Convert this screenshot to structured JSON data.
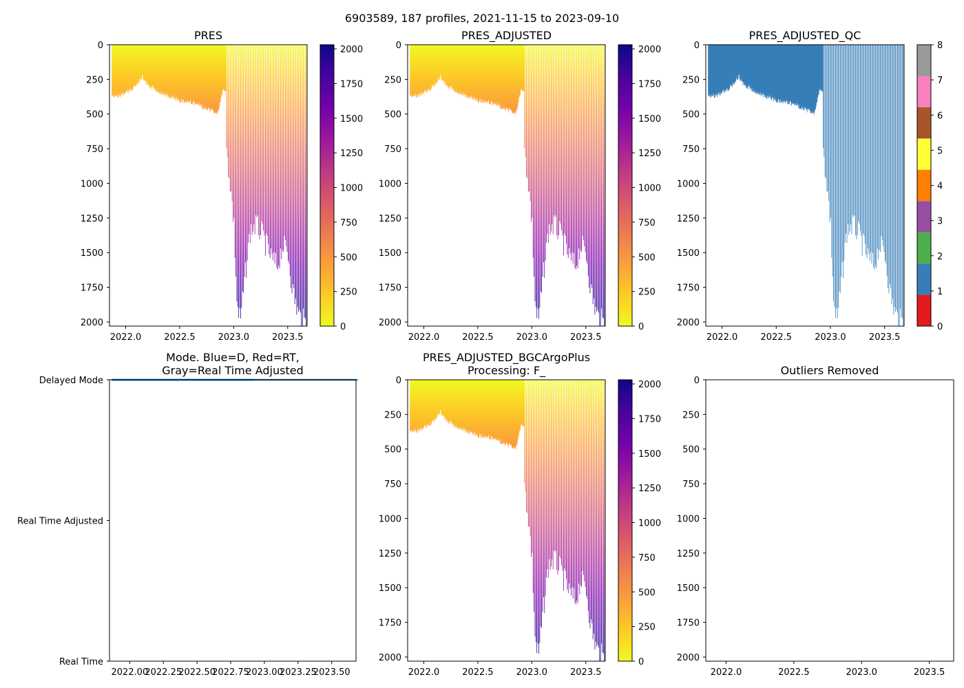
{
  "suptitle": "6903589, 187 profiles, 2021-11-15 to 2023-09-10",
  "colors": {
    "mode_delayed": "#1f77b4",
    "plasma": [
      "#f0f921",
      "#fdca26",
      "#fb9f3a",
      "#ed7953",
      "#d8576b",
      "#bd3786",
      "#9c179e",
      "#7201a8",
      "#46039f",
      "#0d0887"
    ],
    "qc_blue": "#377eb8"
  },
  "chart_data": [
    {
      "id": "pres",
      "type": "heatmap",
      "title": "PRES",
      "xlim": [
        2021.85,
        2023.68
      ],
      "ylim": [
        2030,
        0
      ],
      "xticks": [
        "2022.0",
        "2022.5",
        "2023.0",
        "2023.5"
      ],
      "xtick_values": [
        2022.0,
        2022.5,
        2023.0,
        2023.5
      ],
      "yticks": [
        "0",
        "250",
        "500",
        "750",
        "1000",
        "1250",
        "1500",
        "1750",
        "2000"
      ],
      "ytick_values": [
        0,
        250,
        500,
        750,
        1000,
        1250,
        1500,
        1750,
        2000
      ],
      "colormap": "plasma_r",
      "colorbar": {
        "min": 0,
        "max": 2030,
        "ticks": [
          "0",
          "250",
          "500",
          "750",
          "1000",
          "1250",
          "1500",
          "1750",
          "2000"
        ],
        "tick_values": [
          0,
          250,
          500,
          750,
          1000,
          1250,
          1500,
          1750,
          2000
        ]
      }
    },
    {
      "id": "pres_adjusted",
      "type": "heatmap",
      "title": "PRES_ADJUSTED",
      "xlim": [
        2021.85,
        2023.68
      ],
      "ylim": [
        2030,
        0
      ],
      "xticks": [
        "2022.0",
        "2022.5",
        "2023.0",
        "2023.5"
      ],
      "xtick_values": [
        2022.0,
        2022.5,
        2023.0,
        2023.5
      ],
      "yticks": [
        "0",
        "250",
        "500",
        "750",
        "1000",
        "1250",
        "1500",
        "1750",
        "2000"
      ],
      "ytick_values": [
        0,
        250,
        500,
        750,
        1000,
        1250,
        1500,
        1750,
        2000
      ],
      "colormap": "plasma_r",
      "colorbar": {
        "min": 0,
        "max": 2030,
        "ticks": [
          "0",
          "250",
          "500",
          "750",
          "1000",
          "1250",
          "1500",
          "1750",
          "2000"
        ],
        "tick_values": [
          0,
          250,
          500,
          750,
          1000,
          1250,
          1500,
          1750,
          2000
        ]
      }
    },
    {
      "id": "pres_adjusted_qc",
      "type": "heatmap",
      "title": "PRES_ADJUSTED_QC",
      "xlim": [
        2021.85,
        2023.68
      ],
      "ylim": [
        2030,
        0
      ],
      "xticks": [
        "2022.0",
        "2022.5",
        "2023.0",
        "2023.5"
      ],
      "xtick_values": [
        2022.0,
        2022.5,
        2023.0,
        2023.5
      ],
      "yticks": [
        "0",
        "250",
        "500",
        "750",
        "1000",
        "1250",
        "1500",
        "1750",
        "2000"
      ],
      "ytick_values": [
        0,
        250,
        500,
        750,
        1000,
        1250,
        1500,
        1750,
        2000
      ],
      "colormap": "qc",
      "qc_value": 1,
      "colorbar": {
        "min": 0,
        "max": 8,
        "ticks": [
          "0",
          "1",
          "2",
          "3",
          "4",
          "5",
          "6",
          "7",
          "8"
        ],
        "tick_values": [
          0,
          1,
          2,
          3,
          4,
          5,
          6,
          7,
          8
        ],
        "colors": [
          "#e41a1c",
          "#377eb8",
          "#4daf4a",
          "#984ea3",
          "#ff7f00",
          "#ffff33",
          "#a65628",
          "#f781bf",
          "#999999"
        ]
      }
    },
    {
      "id": "mode",
      "type": "scatter",
      "title": "Mode. Blue=D, Red=RT,\nGray=Real Time Adjusted",
      "xlim": [
        2021.85,
        2023.68
      ],
      "ylim": [
        0,
        2
      ],
      "xticks": [
        "2022.00",
        "2022.25",
        "2022.50",
        "2022.75",
        "2023.00",
        "2023.25",
        "2023.50"
      ],
      "xtick_values": [
        2022.0,
        2022.25,
        2022.5,
        2022.75,
        2023.0,
        2023.25,
        2023.5
      ],
      "yticks": [
        "Real Time",
        "Real Time Adjusted",
        "Delayed Mode"
      ],
      "ytick_values": [
        0,
        1,
        2
      ],
      "series": [
        {
          "name": "Delayed Mode",
          "y": 2,
          "count": 187
        }
      ]
    },
    {
      "id": "pres_bgc",
      "type": "heatmap",
      "title": "PRES_ADJUSTED_BGCArgoPlus\nProcessing: F_",
      "xlim": [
        2021.85,
        2023.68
      ],
      "ylim": [
        2030,
        0
      ],
      "xticks": [
        "2022.0",
        "2022.5",
        "2023.0",
        "2023.5"
      ],
      "xtick_values": [
        2022.0,
        2022.5,
        2023.0,
        2023.5
      ],
      "yticks": [
        "0",
        "250",
        "500",
        "750",
        "1000",
        "1250",
        "1500",
        "1750",
        "2000"
      ],
      "ytick_values": [
        0,
        250,
        500,
        750,
        1000,
        1250,
        1500,
        1750,
        2000
      ],
      "colormap": "plasma_r",
      "colorbar": {
        "min": 0,
        "max": 2030,
        "ticks": [
          "0",
          "250",
          "500",
          "750",
          "1000",
          "1250",
          "1500",
          "1750",
          "2000"
        ],
        "tick_values": [
          0,
          250,
          500,
          750,
          1000,
          1250,
          1500,
          1750,
          2000
        ]
      }
    },
    {
      "id": "outliers",
      "type": "scatter",
      "title": "Outliers Removed",
      "xlim": [
        2021.85,
        2023.68
      ],
      "ylim": [
        2030,
        0
      ],
      "xticks": [
        "2022.0",
        "2022.5",
        "2023.0",
        "2023.5"
      ],
      "xtick_values": [
        2022.0,
        2022.5,
        2023.0,
        2023.5
      ],
      "yticks": [
        "0",
        "250",
        "500",
        "750",
        "1000",
        "1250",
        "1500",
        "1750",
        "2000"
      ],
      "ytick_values": [
        0,
        250,
        500,
        750,
        1000,
        1250,
        1500,
        1750,
        2000
      ],
      "points": []
    }
  ],
  "profiles": {
    "count": 187,
    "start": 2021.87,
    "end": 2023.69,
    "shallow_until": 2022.93,
    "shallow_depth_knots": [
      [
        2021.87,
        370
      ],
      [
        2021.95,
        360
      ],
      [
        2022.0,
        340
      ],
      [
        2022.05,
        320
      ],
      [
        2022.1,
        280
      ],
      [
        2022.15,
        230
      ],
      [
        2022.2,
        290
      ],
      [
        2022.3,
        330
      ],
      [
        2022.4,
        370
      ],
      [
        2022.5,
        400
      ],
      [
        2022.6,
        410
      ],
      [
        2022.7,
        440
      ],
      [
        2022.78,
        470
      ],
      [
        2022.85,
        490
      ],
      [
        2022.9,
        320
      ]
    ],
    "deep_depth_knots": [
      [
        2022.93,
        780
      ],
      [
        2022.96,
        950
      ],
      [
        2023.0,
        1300
      ],
      [
        2023.03,
        1900
      ],
      [
        2023.06,
        2000
      ],
      [
        2023.1,
        1700
      ],
      [
        2023.15,
        1350
      ],
      [
        2023.2,
        1300
      ],
      [
        2023.25,
        1350
      ],
      [
        2023.3,
        1450
      ],
      [
        2023.35,
        1550
      ],
      [
        2023.4,
        1600
      ],
      [
        2023.45,
        1450
      ],
      [
        2023.5,
        1500
      ],
      [
        2023.55,
        1800
      ],
      [
        2023.6,
        1950
      ],
      [
        2023.65,
        2000
      ],
      [
        2023.69,
        2030
      ]
    ],
    "deep_spacing": 0.0088,
    "shallow_spacing": 0.0025
  }
}
